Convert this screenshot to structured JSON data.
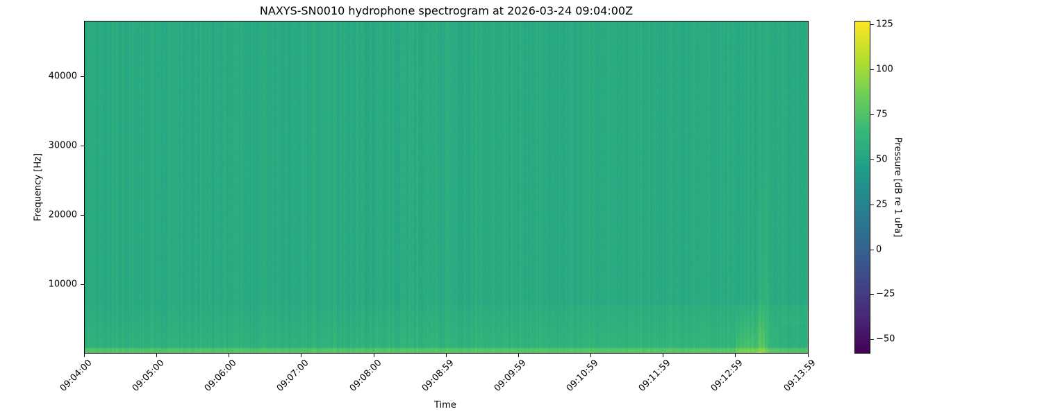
{
  "chart_data": {
    "type": "heatmap",
    "title": "NAXYS-SN0010 hydrophone spectrogram at 2026-03-24 09:04:00Z",
    "xlabel": "Time",
    "ylabel": "Frequency [Hz]",
    "x_range": [
      "09:04:00",
      "09:14:00"
    ],
    "x_ticks": [
      "09:04:00",
      "09:05:00",
      "09:06:00",
      "09:07:00",
      "09:08:00",
      "09:08:59",
      "09:09:59",
      "09:10:59",
      "09:11:59",
      "09:12:59",
      "09:13:59"
    ],
    "ylim": [
      0,
      48000
    ],
    "y_ticks": [
      10000,
      20000,
      30000,
      40000
    ],
    "colorbar": {
      "label": "Pressure [dB re 1 uPa]",
      "range": [
        -58,
        127
      ],
      "ticks": [
        -50,
        -25,
        0,
        25,
        50,
        75,
        100,
        125
      ],
      "colormap": "viridis"
    },
    "typical_level_db": 55,
    "low_frequency_level_db": 75,
    "grid": false
  }
}
